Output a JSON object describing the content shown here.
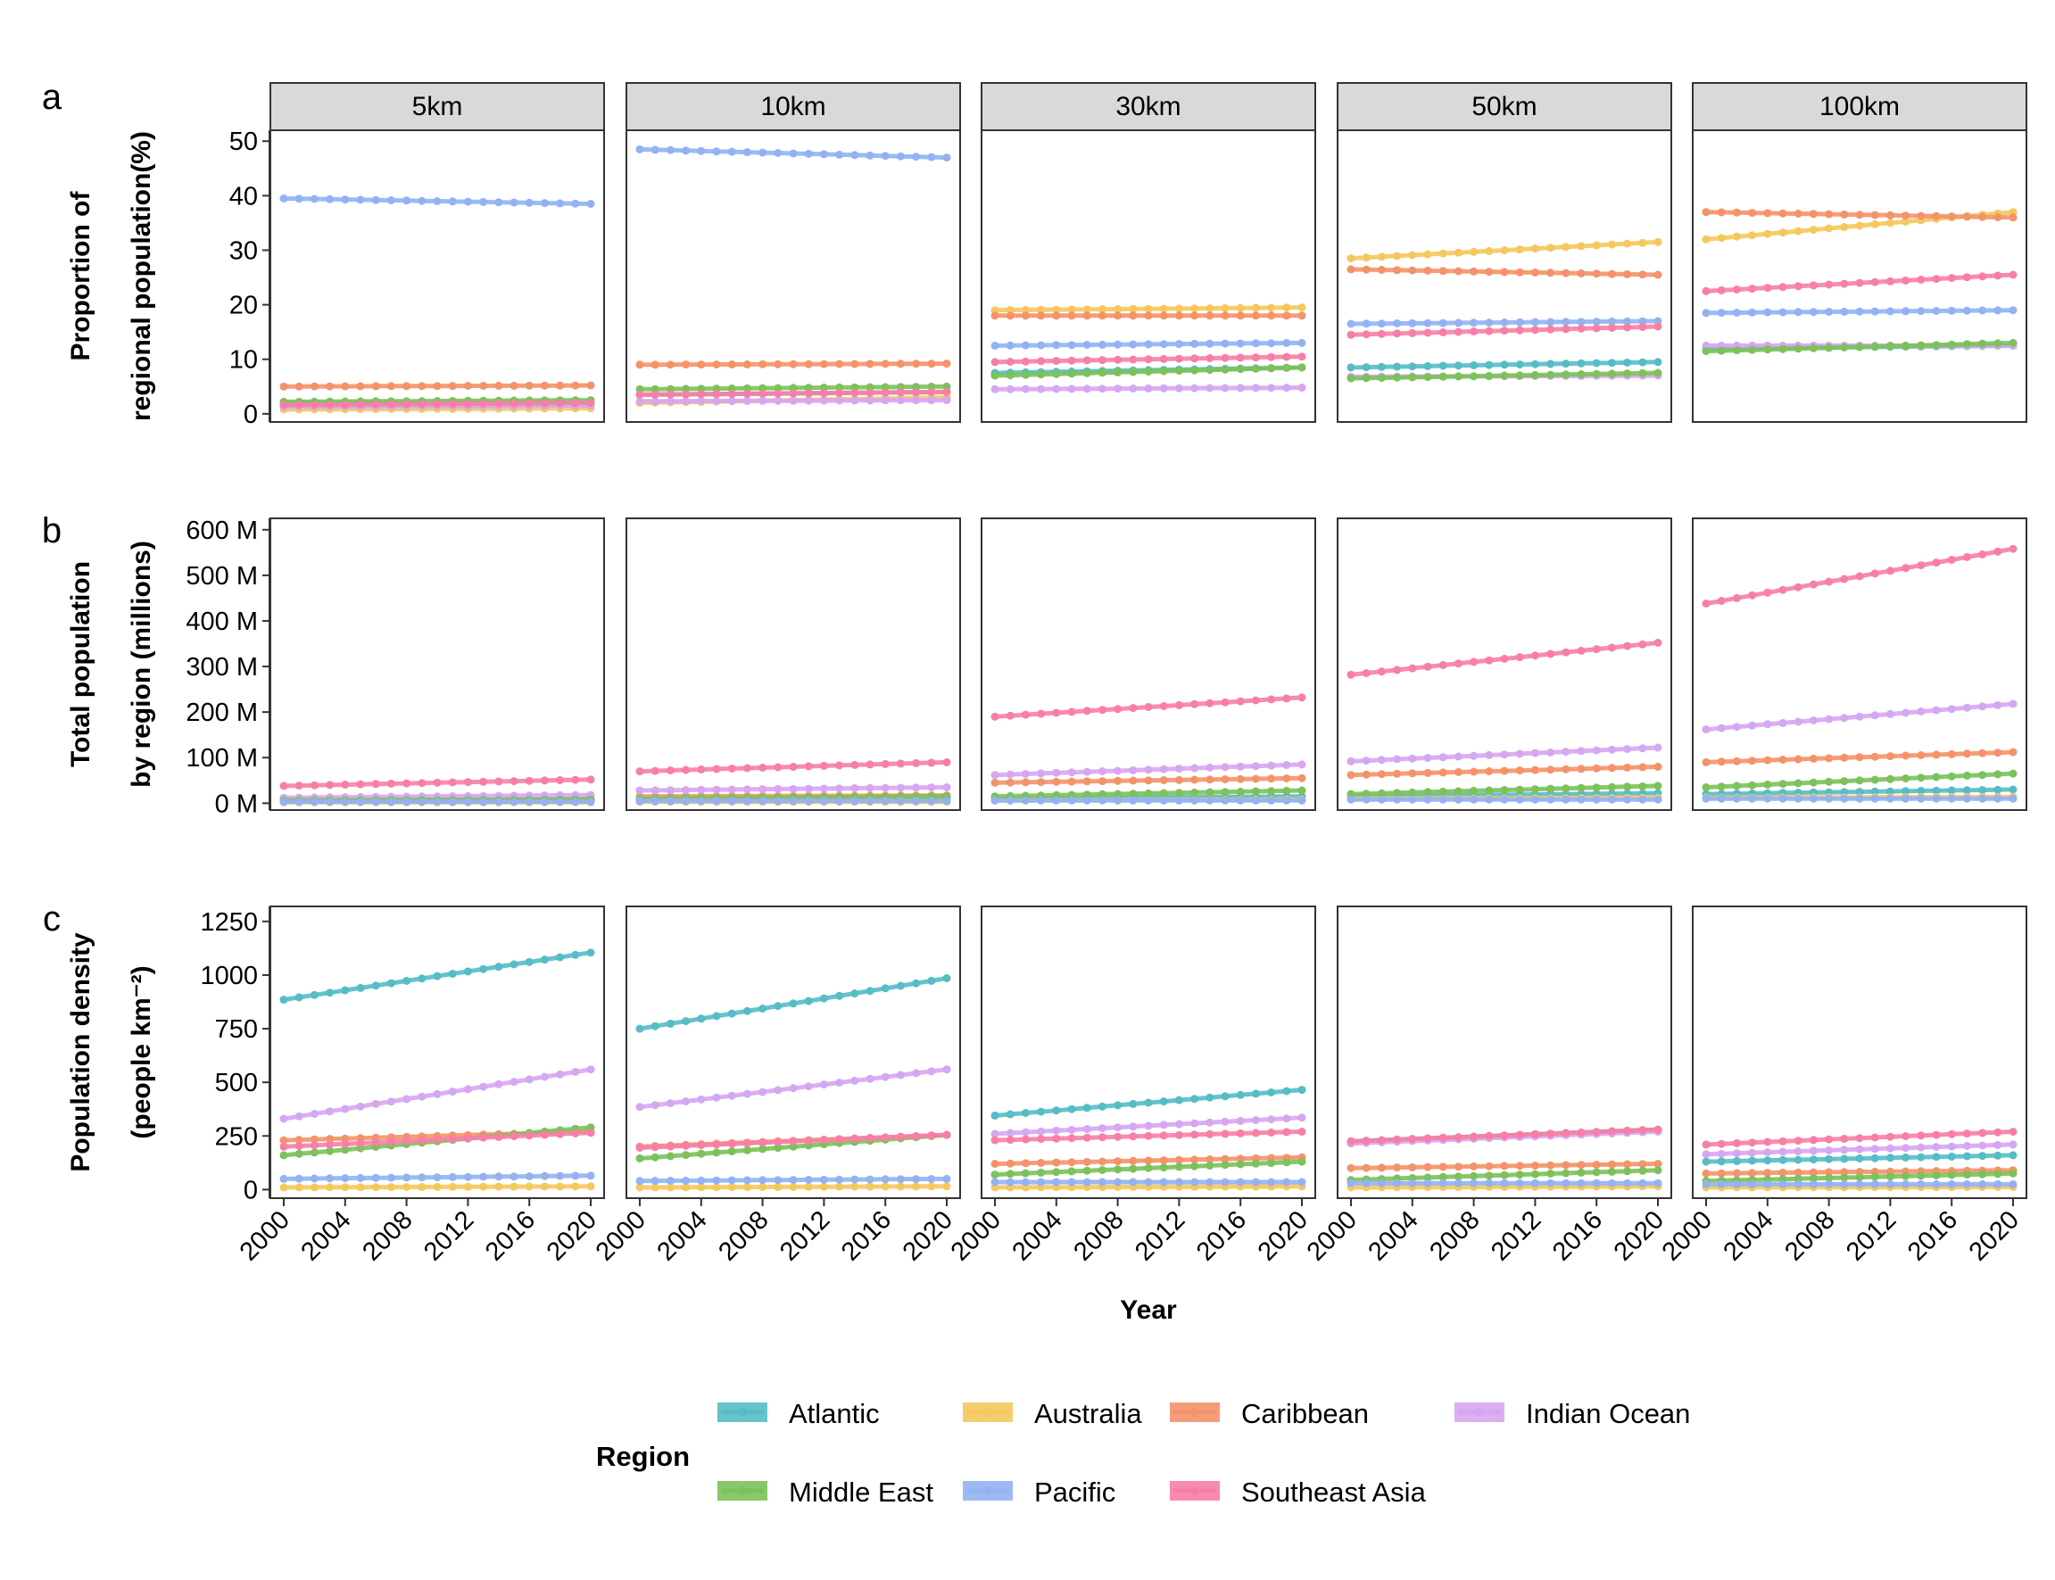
{
  "figure": {
    "row_labels": [
      "a",
      "b",
      "c"
    ],
    "facets": [
      "5km",
      "10km",
      "30km",
      "50km",
      "100km"
    ],
    "x_axis_title": "Year",
    "x_ticks": [
      2000,
      2004,
      2008,
      2012,
      2016,
      2020
    ],
    "rows": [
      {
        "ylabel_lines": [
          "Proportion of",
          "regional population(%)"
        ],
        "y_ticks": [
          0,
          10,
          20,
          30,
          40,
          50
        ],
        "y_tick_labels": [
          "0",
          "10",
          "20",
          "30",
          "40",
          "50"
        ],
        "ylim": [
          -1.5,
          52
        ]
      },
      {
        "ylabel_lines": [
          "Total population",
          "by region (millions)"
        ],
        "y_ticks": [
          0,
          100,
          200,
          300,
          400,
          500,
          600
        ],
        "y_tick_labels": [
          "0 M",
          "100 M",
          "200 M",
          "300 M",
          "400 M",
          "500 M",
          "600 M"
        ],
        "ylim": [
          -15,
          625
        ]
      },
      {
        "ylabel_lines": [
          "Population density",
          "(people km⁻²)"
        ],
        "y_ticks": [
          0,
          250,
          500,
          750,
          1000,
          1250
        ],
        "y_tick_labels": [
          "0",
          "250",
          "500",
          "750",
          "1000",
          "1250"
        ],
        "ylim": [
          -40,
          1320
        ]
      }
    ]
  },
  "legend": {
    "title": "Region",
    "items": [
      {
        "label": "Atlantic",
        "color": "#56BCC5"
      },
      {
        "label": "Australia",
        "color": "#F5C85E"
      },
      {
        "label": "Caribbean",
        "color": "#F3936A"
      },
      {
        "label": "Indian Ocean",
        "color": "#D7A6F0"
      },
      {
        "label": "Middle East",
        "color": "#7CC15A"
      },
      {
        "label": "Pacific",
        "color": "#93B2F2"
      },
      {
        "label": "Southeast Asia",
        "color": "#F77FA6"
      }
    ]
  },
  "chart_data": {
    "type": "line",
    "x_label": "Year",
    "x": [
      2000,
      2020
    ],
    "x_range": [
      2000,
      2020
    ],
    "series_order": [
      "Atlantic",
      "Australia",
      "Caribbean",
      "Indian Ocean",
      "Middle East",
      "Pacific",
      "Southeast Asia"
    ],
    "panels": [
      {
        "row": "a",
        "facet": "5km",
        "series": [
          {
            "name": "Atlantic",
            "values": [
              2,
              2
            ]
          },
          {
            "name": "Australia",
            "values": [
              0.8,
              1
            ]
          },
          {
            "name": "Caribbean",
            "values": [
              5,
              5.2
            ]
          },
          {
            "name": "Indian Ocean",
            "values": [
              1.3,
              1.5
            ]
          },
          {
            "name": "Middle East",
            "values": [
              2.2,
              2.5
            ]
          },
          {
            "name": "Pacific",
            "values": [
              39.5,
              38.5
            ]
          },
          {
            "name": "Southeast Asia",
            "values": [
              1.6,
              2
            ]
          }
        ]
      },
      {
        "row": "a",
        "facet": "10km",
        "series": [
          {
            "name": "Atlantic",
            "values": [
              3.5,
              4
            ]
          },
          {
            "name": "Australia",
            "values": [
              2,
              3
            ]
          },
          {
            "name": "Caribbean",
            "values": [
              9,
              9.2
            ]
          },
          {
            "name": "Indian Ocean",
            "values": [
              2.3,
              2.5
            ]
          },
          {
            "name": "Middle East",
            "values": [
              4.5,
              5
            ]
          },
          {
            "name": "Pacific",
            "values": [
              48.5,
              47
            ]
          },
          {
            "name": "Southeast Asia",
            "values": [
              3.5,
              4
            ]
          }
        ]
      },
      {
        "row": "a",
        "facet": "30km",
        "series": [
          {
            "name": "Atlantic",
            "values": [
              7.5,
              8.5
            ]
          },
          {
            "name": "Australia",
            "values": [
              19,
              19.5
            ]
          },
          {
            "name": "Caribbean",
            "values": [
              18,
              18
            ]
          },
          {
            "name": "Indian Ocean",
            "values": [
              4.5,
              4.8
            ]
          },
          {
            "name": "Middle East",
            "values": [
              7,
              8.5
            ]
          },
          {
            "name": "Pacific",
            "values": [
              12.5,
              13
            ]
          },
          {
            "name": "Southeast Asia",
            "values": [
              9.5,
              10.5
            ]
          }
        ]
      },
      {
        "row": "a",
        "facet": "50km",
        "series": [
          {
            "name": "Atlantic",
            "values": [
              8.5,
              9.5
            ]
          },
          {
            "name": "Australia",
            "values": [
              28.5,
              31.5
            ]
          },
          {
            "name": "Caribbean",
            "values": [
              26.5,
              25.5
            ]
          },
          {
            "name": "Indian Ocean",
            "values": [
              6.8,
              7
            ]
          },
          {
            "name": "Middle East",
            "values": [
              6.5,
              7.5
            ]
          },
          {
            "name": "Pacific",
            "values": [
              16.5,
              17
            ]
          },
          {
            "name": "Southeast Asia",
            "values": [
              14.5,
              16
            ]
          }
        ]
      },
      {
        "row": "a",
        "facet": "100km",
        "series": [
          {
            "name": "Atlantic",
            "values": [
              12,
              12.5
            ]
          },
          {
            "name": "Australia",
            "values": [
              32,
              37
            ]
          },
          {
            "name": "Caribbean",
            "values": [
              37,
              36
            ]
          },
          {
            "name": "Indian Ocean",
            "values": [
              12.5,
              12.5
            ]
          },
          {
            "name": "Middle East",
            "values": [
              11.5,
              13
            ]
          },
          {
            "name": "Pacific",
            "values": [
              18.5,
              19
            ]
          },
          {
            "name": "Southeast Asia",
            "values": [
              22.5,
              25.5
            ]
          }
        ]
      },
      {
        "row": "b",
        "facet": "5km",
        "series": [
          {
            "name": "Atlantic",
            "values": [
              5,
              5
            ]
          },
          {
            "name": "Australia",
            "values": [
              2,
              2
            ]
          },
          {
            "name": "Caribbean",
            "values": [
              8,
              9
            ]
          },
          {
            "name": "Indian Ocean",
            "values": [
              12,
              18
            ]
          },
          {
            "name": "Middle East",
            "values": [
              6,
              8
            ]
          },
          {
            "name": "Pacific",
            "values": [
              3,
              3
            ]
          },
          {
            "name": "Southeast Asia",
            "values": [
              38,
              52
            ]
          }
        ]
      },
      {
        "row": "b",
        "facet": "10km",
        "series": [
          {
            "name": "Atlantic",
            "values": [
              8,
              10
            ]
          },
          {
            "name": "Australia",
            "values": [
              3,
              3
            ]
          },
          {
            "name": "Caribbean",
            "values": [
              15,
              17
            ]
          },
          {
            "name": "Indian Ocean",
            "values": [
              28,
              35
            ]
          },
          {
            "name": "Middle East",
            "values": [
              10,
              15
            ]
          },
          {
            "name": "Pacific",
            "values": [
              5,
              5
            ]
          },
          {
            "name": "Southeast Asia",
            "values": [
              70,
              90
            ]
          }
        ]
      },
      {
        "row": "b",
        "facet": "30km",
        "series": [
          {
            "name": "Atlantic",
            "values": [
              10,
              15
            ]
          },
          {
            "name": "Australia",
            "values": [
              6,
              8
            ]
          },
          {
            "name": "Caribbean",
            "values": [
              45,
              55
            ]
          },
          {
            "name": "Indian Ocean",
            "values": [
              62,
              85
            ]
          },
          {
            "name": "Middle East",
            "values": [
              15,
              28
            ]
          },
          {
            "name": "Pacific",
            "values": [
              6,
              6
            ]
          },
          {
            "name": "Southeast Asia",
            "values": [
              190,
              232
            ]
          }
        ]
      },
      {
        "row": "b",
        "facet": "50km",
        "series": [
          {
            "name": "Atlantic",
            "values": [
              15,
              22
            ]
          },
          {
            "name": "Australia",
            "values": [
              10,
              12
            ]
          },
          {
            "name": "Caribbean",
            "values": [
              62,
              80
            ]
          },
          {
            "name": "Indian Ocean",
            "values": [
              92,
              122
            ]
          },
          {
            "name": "Middle East",
            "values": [
              20,
              38
            ]
          },
          {
            "name": "Pacific",
            "values": [
              8,
              8
            ]
          },
          {
            "name": "Southeast Asia",
            "values": [
              282,
              352
            ]
          }
        ]
      },
      {
        "row": "b",
        "facet": "100km",
        "series": [
          {
            "name": "Atlantic",
            "values": [
              20,
              30
            ]
          },
          {
            "name": "Australia",
            "values": [
              12,
              14
            ]
          },
          {
            "name": "Caribbean",
            "values": [
              90,
              112
            ]
          },
          {
            "name": "Indian Ocean",
            "values": [
              162,
              218
            ]
          },
          {
            "name": "Middle East",
            "values": [
              35,
              65
            ]
          },
          {
            "name": "Pacific",
            "values": [
              10,
              10
            ]
          },
          {
            "name": "Southeast Asia",
            "values": [
              438,
              558
            ]
          }
        ]
      },
      {
        "row": "c",
        "facet": "5km",
        "series": [
          {
            "name": "Atlantic",
            "values": [
              885,
              1105
            ]
          },
          {
            "name": "Australia",
            "values": [
              10,
              15
            ]
          },
          {
            "name": "Caribbean",
            "values": [
              230,
              270
            ]
          },
          {
            "name": "Indian Ocean",
            "values": [
              330,
              560
            ]
          },
          {
            "name": "Middle East",
            "values": [
              160,
              290
            ]
          },
          {
            "name": "Pacific",
            "values": [
              50,
              65
            ]
          },
          {
            "name": "Southeast Asia",
            "values": [
              200,
              265
            ]
          }
        ]
      },
      {
        "row": "c",
        "facet": "10km",
        "series": [
          {
            "name": "Atlantic",
            "values": [
              750,
              985
            ]
          },
          {
            "name": "Australia",
            "values": [
              10,
              15
            ]
          },
          {
            "name": "Caribbean",
            "values": [
              200,
              255
            ]
          },
          {
            "name": "Indian Ocean",
            "values": [
              385,
              560
            ]
          },
          {
            "name": "Middle East",
            "values": [
              145,
              255
            ]
          },
          {
            "name": "Pacific",
            "values": [
              40,
              50
            ]
          },
          {
            "name": "Southeast Asia",
            "values": [
              195,
              255
            ]
          }
        ]
      },
      {
        "row": "c",
        "facet": "30km",
        "series": [
          {
            "name": "Atlantic",
            "values": [
              345,
              465
            ]
          },
          {
            "name": "Australia",
            "values": [
              10,
              15
            ]
          },
          {
            "name": "Caribbean",
            "values": [
              120,
              150
            ]
          },
          {
            "name": "Indian Ocean",
            "values": [
              260,
              335
            ]
          },
          {
            "name": "Middle East",
            "values": [
              70,
              130
            ]
          },
          {
            "name": "Pacific",
            "values": [
              35,
              35
            ]
          },
          {
            "name": "Southeast Asia",
            "values": [
              230,
              270
            ]
          }
        ]
      },
      {
        "row": "c",
        "facet": "50km",
        "series": [
          {
            "name": "Atlantic",
            "values": [
              225,
              280
            ]
          },
          {
            "name": "Australia",
            "values": [
              10,
              15
            ]
          },
          {
            "name": "Caribbean",
            "values": [
              100,
              120
            ]
          },
          {
            "name": "Indian Ocean",
            "values": [
              215,
              270
            ]
          },
          {
            "name": "Middle East",
            "values": [
              45,
              90
            ]
          },
          {
            "name": "Pacific",
            "values": [
              30,
              30
            ]
          },
          {
            "name": "Southeast Asia",
            "values": [
              225,
              280
            ]
          }
        ]
      },
      {
        "row": "c",
        "facet": "100km",
        "series": [
          {
            "name": "Atlantic",
            "values": [
              130,
              160
            ]
          },
          {
            "name": "Australia",
            "values": [
              10,
              12
            ]
          },
          {
            "name": "Caribbean",
            "values": [
              75,
              90
            ]
          },
          {
            "name": "Indian Ocean",
            "values": [
              165,
              210
            ]
          },
          {
            "name": "Middle East",
            "values": [
              40,
              75
            ]
          },
          {
            "name": "Pacific",
            "values": [
              25,
              25
            ]
          },
          {
            "name": "Southeast Asia",
            "values": [
              210,
              270
            ]
          }
        ]
      }
    ]
  }
}
